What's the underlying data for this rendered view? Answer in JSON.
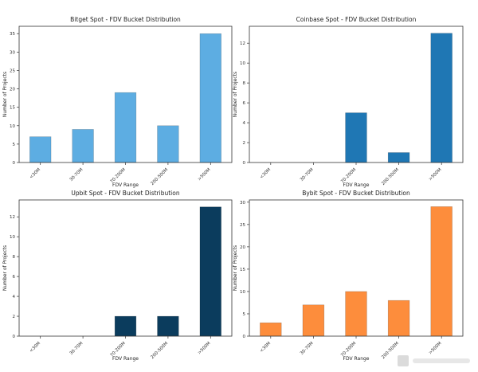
{
  "chart_data": [
    {
      "type": "bar",
      "title": "Bitget Spot - FDV Bucket Distribution",
      "xlabel": "FDV Range",
      "ylabel": "Number of Projects",
      "categories": [
        "<30M",
        "30-70M",
        "70-200M",
        "200-500M",
        ">500M"
      ],
      "values": [
        7,
        9,
        19,
        10,
        35
      ],
      "ylim": [
        0,
        37
      ],
      "yticks": [
        0,
        5,
        10,
        15,
        20,
        25,
        30,
        35
      ],
      "color": "#5dade2",
      "grid": false
    },
    {
      "type": "bar",
      "title": "Coinbase Spot - FDV Bucket Distribution",
      "xlabel": "FDV Range",
      "ylabel": "Number of Projects",
      "categories": [
        "<30M",
        "30-70M",
        "70-200M",
        "200-500M",
        ">500M"
      ],
      "values": [
        0,
        0,
        5,
        1,
        13
      ],
      "ylim": [
        0,
        13.7
      ],
      "yticks": [
        0,
        2,
        4,
        6,
        8,
        10,
        12
      ],
      "color": "#1f77b4",
      "grid": false
    },
    {
      "type": "bar",
      "title": "Upbit Spot - FDV Bucket Distribution",
      "xlabel": "FDV Range",
      "ylabel": "Number of Projects",
      "categories": [
        "<30M",
        "30-70M",
        "70-200M",
        "200-500M",
        ">500M"
      ],
      "values": [
        0,
        0,
        2,
        2,
        13
      ],
      "ylim": [
        0,
        13.7
      ],
      "yticks": [
        0,
        2,
        4,
        6,
        8,
        10,
        12
      ],
      "color": "#0b3c5d",
      "grid": false
    },
    {
      "type": "bar",
      "title": "Bybit Spot - FDV Bucket Distribution",
      "xlabel": "FDV Range",
      "ylabel": "Number of Projects",
      "categories": [
        "<30M",
        "30-70M",
        "70-200M",
        "200-500M",
        ">500M"
      ],
      "values": [
        3,
        7,
        10,
        8,
        29
      ],
      "ylim": [
        0,
        30.5
      ],
      "yticks": [
        0,
        5,
        10,
        15,
        20,
        25,
        30
      ],
      "color": "#fd8d3c",
      "grid": false
    }
  ]
}
